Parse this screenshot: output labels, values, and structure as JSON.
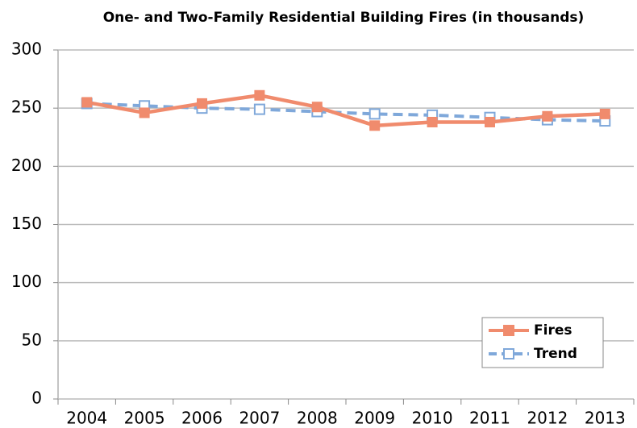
{
  "chart_data": {
    "type": "line",
    "title": "One- and Two-Family Residential Building Fires (in thousands)",
    "categories": [
      "2004",
      "2005",
      "2006",
      "2007",
      "2008",
      "2009",
      "2010",
      "2011",
      "2012",
      "2013"
    ],
    "series": [
      {
        "name": "Fires",
        "color": "#f08b6d",
        "linestyle": "solid",
        "marker": "filled",
        "values": [
          255,
          246,
          254,
          261,
          251,
          235,
          238,
          238,
          243,
          245
        ]
      },
      {
        "name": "Trend",
        "color": "#7fa8da",
        "linestyle": "dashed",
        "marker": "hollow",
        "values": [
          254,
          252,
          250,
          249,
          247,
          245,
          244,
          242,
          240,
          239
        ]
      }
    ],
    "ylim": [
      0,
      300
    ],
    "yticks": [
      0,
      50,
      100,
      150,
      200,
      250,
      300
    ],
    "grid": true,
    "legend": "lower right"
  }
}
